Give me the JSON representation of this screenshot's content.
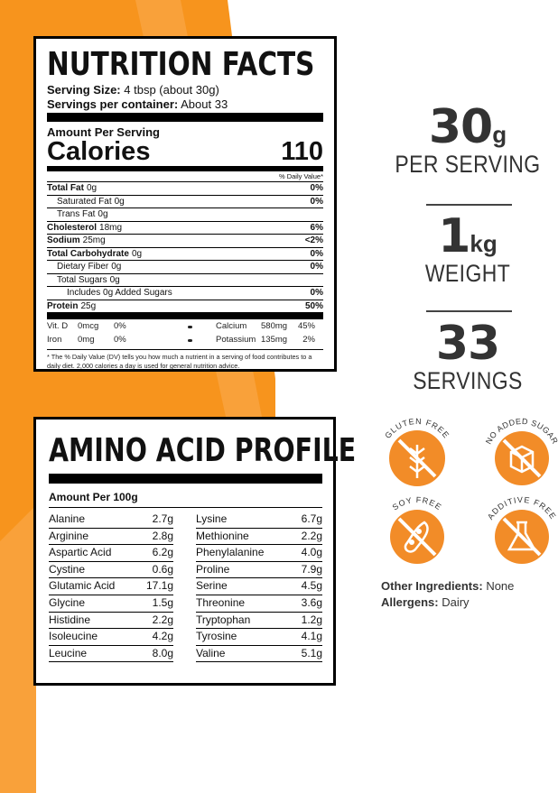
{
  "nutrition": {
    "title": "NUTRITION FACTS",
    "serving_size": {
      "label": "Serving Size:",
      "value": "4 tbsp (about 30g)"
    },
    "servings": {
      "label": "Servings per container:",
      "value": "About 33"
    },
    "amount_per_serving": "Amount Per Serving",
    "calories": {
      "label": "Calories",
      "value": 110
    },
    "dv_header": "% Daily Value*",
    "rows": [
      {
        "name": "Total Fat",
        "amount": "0g",
        "dv": "0%"
      },
      {
        "name": "Saturated Fat",
        "amount": "0g",
        "dv": "0%"
      },
      {
        "name": "Trans Fat",
        "amount": "0g"
      },
      {
        "name": "Cholesterol",
        "amount": "18mg",
        "dv": "6%"
      },
      {
        "name": "Sodium",
        "amount": "25mg",
        "dv": "<2%"
      },
      {
        "name": "Total Carbohydrate",
        "amount": "0g",
        "dv": "0%"
      },
      {
        "name": "Dietary Fiber",
        "amount": "0g",
        "dv": "0%"
      },
      {
        "name": "Total Sugars",
        "amount": "0g"
      },
      {
        "name": "Includes 0g Added Sugars",
        "dv": "0%"
      },
      {
        "name": "Protein",
        "amount": "25g",
        "dv": "50%"
      }
    ],
    "micros": [
      [
        {
          "name": "Vit. D",
          "amount": "0mcg",
          "dv": "0%"
        },
        {
          "name": "Calcium",
          "amount": "580mg",
          "dv": "45%"
        }
      ],
      [
        {
          "name": "Iron",
          "amount": "0mg",
          "dv": "0%"
        },
        {
          "name": "Potassium",
          "amount": "135mg",
          "dv": "2%"
        }
      ]
    ],
    "footnote": "* The % Daily Value (DV) tells you how much a nutrient in a serving of food contributes to a daily diet. 2,000 calories a day is used for general nutrition advice."
  },
  "amino": {
    "title": "AMINO ACID PROFILE",
    "subtitle": "Amount Per 100g",
    "left": [
      {
        "name": "Alanine",
        "amount": "2.7g"
      },
      {
        "name": "Arginine",
        "amount": "2.8g"
      },
      {
        "name": "Aspartic Acid",
        "amount": "6.2g"
      },
      {
        "name": "Cystine",
        "amount": "0.6g"
      },
      {
        "name": "Glutamic Acid",
        "amount": "17.1g"
      },
      {
        "name": "Glycine",
        "amount": "1.5g"
      },
      {
        "name": "Histidine",
        "amount": "2.2g"
      },
      {
        "name": "Isoleucine",
        "amount": "4.2g"
      },
      {
        "name": "Leucine",
        "amount": "8.0g"
      }
    ],
    "right": [
      {
        "name": "Lysine",
        "amount": "6.7g"
      },
      {
        "name": "Methionine",
        "amount": "2.2g"
      },
      {
        "name": "Phenylalanine",
        "amount": "4.0g"
      },
      {
        "name": "Proline",
        "amount": "7.9g"
      },
      {
        "name": "Serine",
        "amount": "4.5g"
      },
      {
        "name": "Threonine",
        "amount": "3.6g"
      },
      {
        "name": "Tryptophan",
        "amount": "1.2g"
      },
      {
        "name": "Tyrosine",
        "amount": "4.1g"
      },
      {
        "name": "Valine",
        "amount": "5.1g"
      }
    ]
  },
  "stats": [
    {
      "value": "30",
      "unit": "g",
      "label": "PER SERVING"
    },
    {
      "value": "1",
      "unit": "kg",
      "label": "WEIGHT"
    },
    {
      "value": "33",
      "label": "SERVINGS"
    }
  ],
  "badges": [
    "GLUTEN FREE",
    "NO ADDED SUGAR",
    "SOY FREE",
    "ADDITIVE FREE"
  ],
  "other_ingredients": {
    "label": "Other Ingredients:",
    "value": "None"
  },
  "allergens": {
    "label": "Allergens:",
    "value": "Dairy"
  }
}
